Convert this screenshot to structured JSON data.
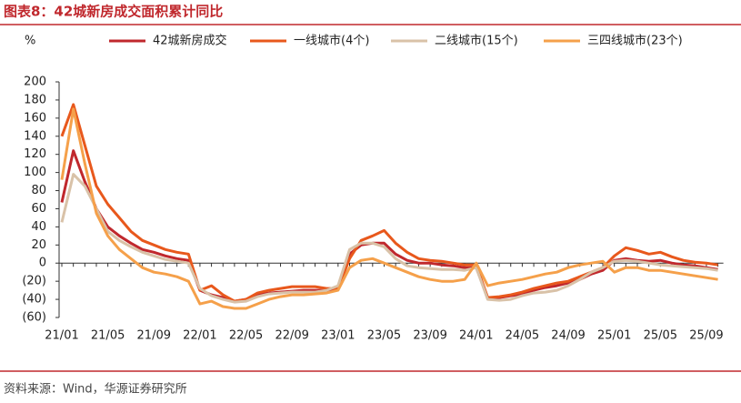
{
  "chart_data": {
    "type": "line",
    "title": "图表8：42城新房成交面积累计同比",
    "y_label": "%",
    "source": "资料来源：Wind，华源证券研究所",
    "categories": [
      "21/01",
      null,
      null,
      null,
      "21/05",
      null,
      null,
      null,
      "21/09",
      null,
      null,
      null,
      "22/01",
      null,
      null,
      null,
      "22/05",
      null,
      null,
      null,
      "22/09",
      null,
      null,
      null,
      "23/01",
      null,
      null,
      null,
      "23/05",
      null,
      null,
      null,
      "23/09",
      null,
      null,
      null,
      "24/01",
      null,
      null,
      null,
      "24/05",
      null,
      null,
      null,
      "24/09",
      null,
      null,
      null,
      "25/01",
      null,
      null,
      null,
      "25/05",
      null,
      null,
      null,
      "25/09",
      null
    ],
    "ylim": [
      -60,
      200
    ],
    "yticks": [
      {
        "value": -60,
        "label": "(60)"
      },
      {
        "value": -40,
        "label": "(40)"
      },
      {
        "value": -20,
        "label": "(20)"
      },
      0,
      20,
      40,
      60,
      80,
      100,
      120,
      140,
      160,
      180,
      200
    ],
    "series": [
      {
        "name": "42城新房成交",
        "color": "#c0282d",
        "values": [
          67,
          124,
          90,
          60,
          40,
          30,
          22,
          15,
          12,
          8,
          5,
          3,
          -30,
          -35,
          -38,
          -42,
          -40,
          -35,
          -33,
          -32,
          -31,
          -30,
          -30,
          -30,
          -28,
          10,
          20,
          22,
          22,
          10,
          3,
          0,
          0,
          -2,
          -3,
          -5,
          -5,
          -38,
          -38,
          -36,
          -34,
          -30,
          -27,
          -25,
          -22,
          -18,
          -12,
          -8,
          3,
          5,
          3,
          2,
          3,
          0,
          -2,
          -3,
          -5,
          -7
        ]
      },
      {
        "name": "一线城市(4个)",
        "color": "#e8581c",
        "values": [
          140,
          175,
          130,
          85,
          65,
          50,
          35,
          25,
          20,
          15,
          12,
          10,
          -30,
          -25,
          -35,
          -42,
          -40,
          -33,
          -30,
          -28,
          -26,
          -26,
          -26,
          -28,
          -28,
          5,
          25,
          30,
          36,
          22,
          12,
          5,
          3,
          2,
          0,
          -2,
          -2,
          -38,
          -37,
          -35,
          -32,
          -28,
          -25,
          -22,
          -20,
          -15,
          -10,
          -5,
          8,
          17,
          14,
          10,
          12,
          7,
          3,
          1,
          0,
          -2
        ]
      },
      {
        "name": "二线城市(15个)",
        "color": "#d9c2a8",
        "values": [
          45,
          98,
          85,
          60,
          35,
          25,
          18,
          12,
          8,
          4,
          2,
          0,
          -28,
          -36,
          -40,
          -43,
          -42,
          -37,
          -34,
          -33,
          -32,
          -32,
          -32,
          -30,
          -25,
          15,
          22,
          22,
          18,
          5,
          -3,
          -5,
          -6,
          -7,
          -7,
          -8,
          -5,
          -40,
          -41,
          -40,
          -36,
          -33,
          -32,
          -30,
          -25,
          -18,
          -10,
          -5,
          2,
          3,
          2,
          0,
          -2,
          -3,
          -4,
          -5,
          -6,
          -8
        ]
      },
      {
        "name": "三四线城市(23个)",
        "color": "#f5a04a",
        "values": [
          92,
          170,
          110,
          55,
          30,
          15,
          5,
          -5,
          -10,
          -12,
          -15,
          -20,
          -45,
          -42,
          -48,
          -50,
          -50,
          -45,
          -40,
          -37,
          -35,
          -35,
          -34,
          -33,
          -30,
          -5,
          3,
          5,
          0,
          -5,
          -10,
          -15,
          -18,
          -20,
          -20,
          -18,
          0,
          -25,
          -22,
          -20,
          -18,
          -15,
          -12,
          -10,
          -5,
          -2,
          0,
          2,
          -10,
          -5,
          -5,
          -8,
          -8,
          -10,
          -12,
          -14,
          -16,
          -18
        ]
      }
    ]
  }
}
